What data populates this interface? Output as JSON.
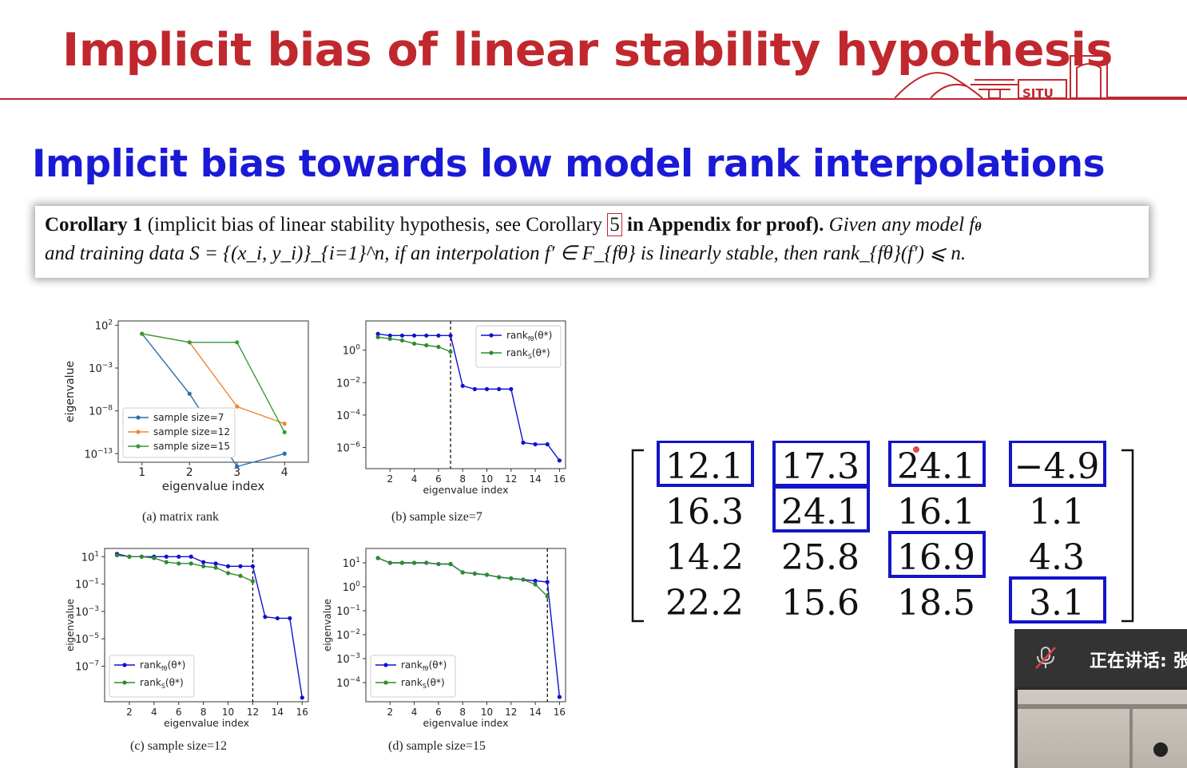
{
  "slide": {
    "title": "Implicit bias of linear stability hypothesis",
    "logo_text": "SJTU",
    "subtitle": "Implicit bias towards low model rank interpolations"
  },
  "corollary": {
    "label": "Corollary 1",
    "paren": "(implicit bias of linear stability hypothesis, see Corollary ",
    "ref": "5",
    "paren_end": " in Appendix for proof).",
    "given": "Given any model f",
    "line2": "and training data S = {(x_i, y_i)}_{i=1}^n, if an interpolation f′ ∈ F_{fθ} is linearly stable, then rank_{fθ}(f′) ⩽ n."
  },
  "captions": {
    "a": "(a) matrix rank",
    "b": "(b) sample size=7",
    "c": "(c) sample size=12",
    "d": "(d) sample size=15"
  },
  "chart_data": [
    {
      "type": "line",
      "id": "a",
      "xlabel": "eigenvalue index",
      "ylabel": "eigenvalue",
      "y_scale": "log",
      "x_ticks": [
        "1",
        "2",
        "3",
        "4"
      ],
      "y_ticks": [
        "10^2",
        "10^-3",
        "10^-8",
        "10^-13"
      ],
      "legend_position": "bottom-left",
      "series": [
        {
          "name": "sample size=7",
          "color": "#2b6ea6",
          "x": [
            1,
            2,
            3,
            4
          ],
          "y_exp": [
            1,
            -6,
            -14.5,
            -13
          ]
        },
        {
          "name": "sample size=12",
          "color": "#ef8636",
          "x": [
            1,
            2,
            3,
            4
          ],
          "y_exp": [
            1,
            0,
            -7.5,
            -9.5
          ]
        },
        {
          "name": "sample size=15",
          "color": "#3a9a3a",
          "x": [
            1,
            2,
            3,
            4
          ],
          "y_exp": [
            1,
            0,
            0,
            -10.5
          ]
        }
      ]
    },
    {
      "type": "line",
      "id": "b",
      "xlabel": "eigenvalue index",
      "y_scale": "log",
      "x_ticks": [
        "2",
        "4",
        "6",
        "8",
        "10",
        "12",
        "14",
        "16"
      ],
      "y_ticks": [
        "10^0",
        "10^-2",
        "10^-4",
        "10^-6"
      ],
      "vline_x": 7,
      "legend_position": "top-right",
      "series": [
        {
          "name": "rank_{fθ}(θ*)",
          "color": "#1010d0",
          "x": [
            1,
            2,
            3,
            4,
            5,
            6,
            7,
            8,
            9,
            10,
            11,
            12,
            13,
            14,
            15,
            16
          ],
          "y_exp": [
            1,
            0.9,
            0.9,
            0.9,
            0.9,
            0.9,
            0.9,
            -2.2,
            -2.4,
            -2.4,
            -2.4,
            -2.4,
            -5.7,
            -5.8,
            -5.8,
            -6.8
          ]
        },
        {
          "name": "rank_S(θ*)",
          "color": "#2e8b2e",
          "x": [
            1,
            2,
            3,
            4,
            5,
            6,
            7
          ],
          "y_exp": [
            0.8,
            0.7,
            0.6,
            0.4,
            0.3,
            0.2,
            -0.1
          ]
        }
      ]
    },
    {
      "type": "line",
      "id": "c",
      "xlabel": "eigenvalue index",
      "ylabel": "eigenvalue",
      "y_scale": "log",
      "x_ticks": [
        "2",
        "4",
        "6",
        "8",
        "10",
        "12",
        "14",
        "16"
      ],
      "y_ticks": [
        "10^1",
        "10^-1",
        "10^-3",
        "10^-5",
        "10^-7"
      ],
      "vline_x": 12,
      "legend_position": "bottom-left",
      "series": [
        {
          "name": "rank_{fθ}(θ*)",
          "color": "#1010d0",
          "x": [
            1,
            2,
            3,
            4,
            5,
            6,
            7,
            8,
            9,
            10,
            11,
            12,
            13,
            14,
            15,
            16
          ],
          "y_exp": [
            1.2,
            1,
            1,
            1,
            1,
            1,
            1,
            0.6,
            0.5,
            0.3,
            0.3,
            0.3,
            -3.4,
            -3.5,
            -3.5,
            -9.3
          ]
        },
        {
          "name": "rank_S(θ*)",
          "color": "#2e8b2e",
          "x": [
            1,
            2,
            3,
            4,
            5,
            6,
            7,
            8,
            9,
            10,
            11,
            12
          ],
          "y_exp": [
            1.1,
            1,
            1,
            0.9,
            0.6,
            0.5,
            0.5,
            0.3,
            0.2,
            -0.2,
            -0.4,
            -0.8
          ]
        }
      ]
    },
    {
      "type": "line",
      "id": "d",
      "xlabel": "eigenvalue index",
      "ylabel": "eigenvalue",
      "y_scale": "log",
      "x_ticks": [
        "2",
        "4",
        "6",
        "8",
        "10",
        "12",
        "14",
        "16"
      ],
      "y_ticks": [
        "10^1",
        "10^0",
        "10^-1",
        "10^-2",
        "10^-3",
        "10^-4"
      ],
      "vline_x": 15,
      "legend_position": "bottom-left",
      "series": [
        {
          "name": "rank_{fθ}(θ*)",
          "color": "#1010d0",
          "x": [
            1,
            2,
            3,
            4,
            5,
            6,
            7,
            8,
            9,
            10,
            11,
            12,
            13,
            14,
            15,
            16
          ],
          "y_exp": [
            1.2,
            1,
            1,
            1,
            1,
            0.95,
            0.95,
            0.6,
            0.55,
            0.5,
            0.4,
            0.35,
            0.3,
            0.25,
            0.2,
            -4.6
          ]
        },
        {
          "name": "rank_S(θ*)",
          "color": "#2e8b2e",
          "x": [
            1,
            2,
            3,
            4,
            5,
            6,
            7,
            8,
            9,
            10,
            11,
            12,
            13,
            14,
            15
          ],
          "y_exp": [
            1.2,
            1,
            1,
            1,
            1,
            0.95,
            0.95,
            0.6,
            0.55,
            0.5,
            0.4,
            0.35,
            0.3,
            0.1,
            -0.4
          ]
        }
      ]
    }
  ],
  "matrix": {
    "rows": [
      [
        "12.1",
        "17.3",
        "24.1",
        "−4.9"
      ],
      [
        "16.3",
        "24.1",
        "16.1",
        "1.1"
      ],
      [
        "14.2",
        "25.8",
        "16.9",
        "4.3"
      ],
      [
        "22.2",
        "15.6",
        "18.5",
        "3.1"
      ]
    ],
    "boxed": [
      [
        0,
        0
      ],
      [
        0,
        1
      ],
      [
        1,
        1
      ],
      [
        0,
        2
      ],
      [
        2,
        2
      ],
      [
        0,
        3
      ],
      [
        3,
        3
      ]
    ],
    "box_color": "#1414c8"
  },
  "meeting": {
    "speaker_label": "正在讲话: 张",
    "mic_icon": "mic-muted-icon"
  }
}
